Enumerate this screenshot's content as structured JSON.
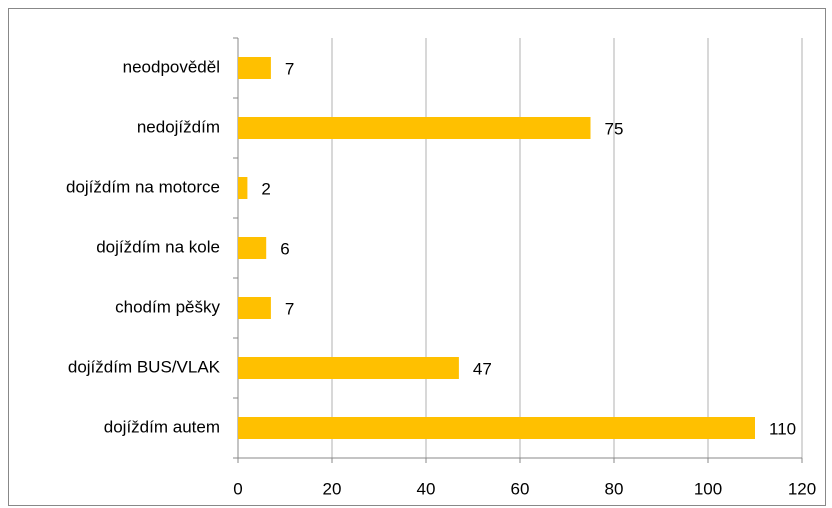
{
  "chart_data": {
    "type": "bar",
    "orientation": "horizontal",
    "categories": [
      "neodpověděl",
      "nedojíždím",
      "dojíždím na motorce",
      "dojíždím na kole",
      "chodím pěšky",
      "dojíždím BUS/VLAK",
      "dojíždím autem"
    ],
    "values": [
      7,
      75,
      2,
      6,
      7,
      47,
      110
    ],
    "color": "#ffc000",
    "xlim": [
      0,
      120
    ],
    "xticks": [
      0,
      20,
      40,
      60,
      80,
      100,
      120
    ],
    "grid": true
  }
}
